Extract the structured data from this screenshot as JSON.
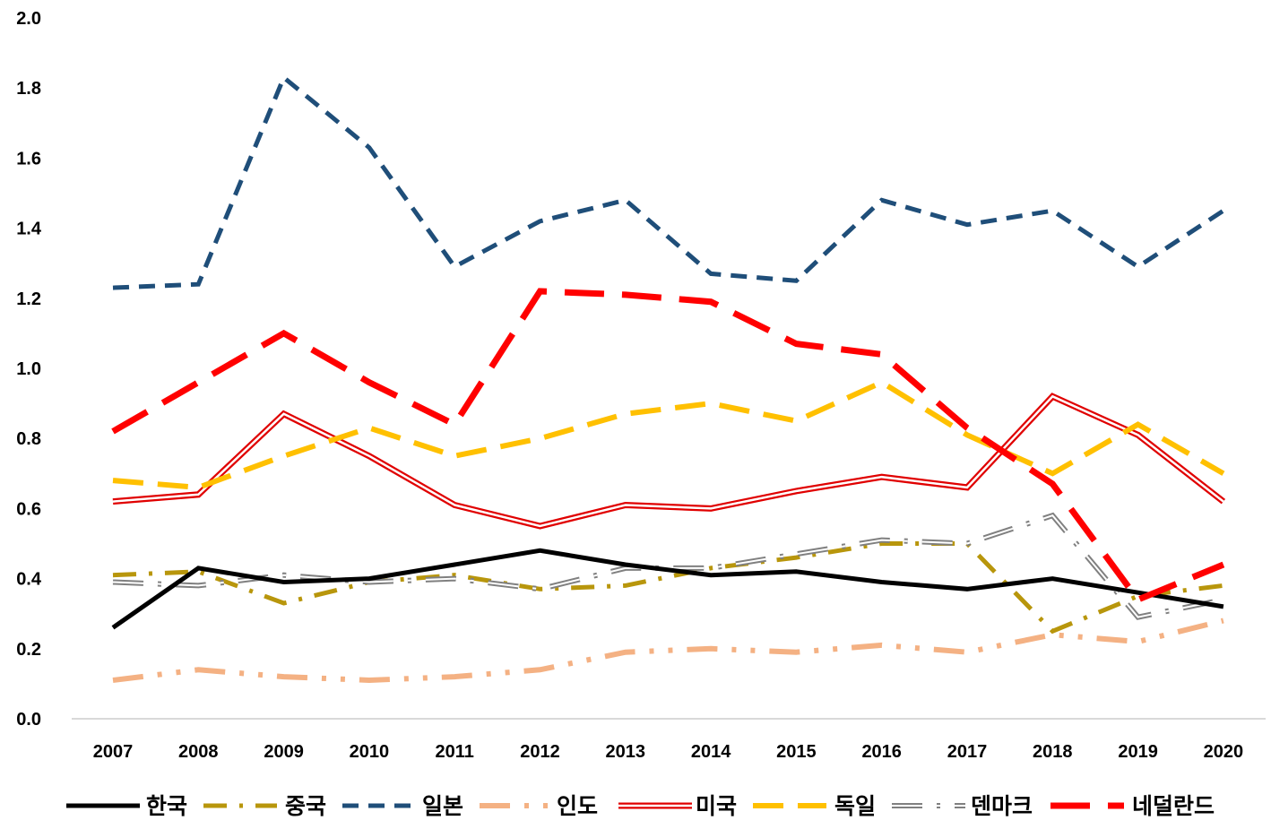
{
  "chart_data": {
    "type": "line",
    "title": "",
    "xlabel": "",
    "ylabel": "",
    "x": [
      "2007",
      "2008",
      "2009",
      "2010",
      "2011",
      "2012",
      "2013",
      "2014",
      "2015",
      "2016",
      "2017",
      "2018",
      "2019",
      "2020"
    ],
    "ylim": [
      0,
      2.0
    ],
    "yticks": [
      "0.0",
      "0.2",
      "0.4",
      "0.6",
      "0.8",
      "1.0",
      "1.2",
      "1.4",
      "1.6",
      "1.8",
      "2.0"
    ],
    "grid": false,
    "legend_position": "bottom",
    "series": [
      {
        "name": "한국",
        "color": "#000000",
        "style": "solid",
        "values": [
          0.26,
          0.43,
          0.39,
          0.4,
          0.44,
          0.48,
          0.44,
          0.41,
          0.42,
          0.39,
          0.37,
          0.4,
          0.36,
          0.32
        ]
      },
      {
        "name": "중국",
        "color": "#B8960C",
        "style": "long-dash-dot",
        "values": [
          0.41,
          0.42,
          0.33,
          0.39,
          0.41,
          0.37,
          0.38,
          0.43,
          0.46,
          0.5,
          0.5,
          0.25,
          0.35,
          0.38
        ]
      },
      {
        "name": "일본",
        "color": "#1F4E79",
        "style": "dash",
        "values": [
          1.23,
          1.24,
          1.83,
          1.63,
          1.29,
          1.42,
          1.48,
          1.27,
          1.25,
          1.48,
          1.41,
          1.45,
          1.29,
          1.45
        ]
      },
      {
        "name": "인도",
        "color": "#F4B183",
        "style": "long-dash-dot-dot",
        "values": [
          0.11,
          0.14,
          0.12,
          0.11,
          0.12,
          0.14,
          0.19,
          0.2,
          0.19,
          0.21,
          0.19,
          0.24,
          0.22,
          0.28
        ]
      },
      {
        "name": "미국",
        "color": "#E00000",
        "style": "double",
        "values": [
          0.62,
          0.64,
          0.87,
          0.75,
          0.61,
          0.55,
          0.61,
          0.6,
          0.65,
          0.69,
          0.66,
          0.92,
          0.81,
          0.62
        ]
      },
      {
        "name": "독일",
        "color": "#FFC000",
        "style": "long-dash",
        "values": [
          0.68,
          0.66,
          0.75,
          0.83,
          0.75,
          0.8,
          0.87,
          0.9,
          0.85,
          0.96,
          0.81,
          0.7,
          0.84,
          0.7
        ]
      },
      {
        "name": "덴마크",
        "color": "#808080",
        "style": "double-dash-dot",
        "values": [
          0.39,
          0.38,
          0.41,
          0.39,
          0.4,
          0.37,
          0.43,
          0.43,
          0.47,
          0.51,
          0.5,
          0.58,
          0.29,
          0.34
        ]
      },
      {
        "name": "네덜란드",
        "color": "#FF0000",
        "style": "heavy-long-dash",
        "values": [
          0.82,
          0.96,
          1.1,
          0.96,
          0.84,
          1.22,
          1.21,
          1.19,
          1.07,
          1.04,
          0.83,
          0.67,
          0.34,
          0.44
        ]
      }
    ]
  }
}
